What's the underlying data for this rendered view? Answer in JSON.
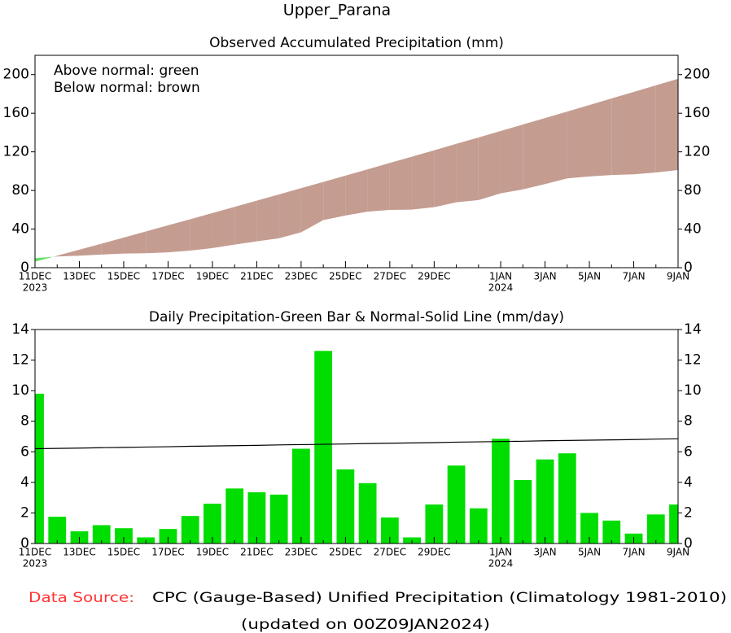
{
  "title": "Upper_Parana",
  "footer": {
    "source_label": "Data Source:",
    "source_text": "CPC (Gauge-Based) Unified Precipitation (Climatology 1981-2010)",
    "updated": "(updated on 00Z09JAN2024)"
  },
  "chart_data": [
    {
      "type": "area",
      "title": "Observed Accumulated Precipitation (mm)",
      "annotations": [
        "Above normal: green",
        "Below normal: brown"
      ],
      "categories": [
        "11DEC",
        null,
        "13DEC",
        null,
        "15DEC",
        null,
        "17DEC",
        null,
        "19DEC",
        null,
        "21DEC",
        null,
        "23DEC",
        null,
        "25DEC",
        null,
        "27DEC",
        null,
        "29DEC",
        null,
        null,
        "1JAN",
        null,
        "3JAN",
        null,
        "5JAN",
        null,
        "7JAN",
        null,
        "9JAN"
      ],
      "x_year_labels": [
        "2023",
        null,
        null,
        null,
        null,
        null,
        null,
        null,
        null,
        null,
        null,
        null,
        null,
        null,
        null,
        null,
        null,
        null,
        null,
        null,
        null,
        "2024",
        null,
        null,
        null,
        null,
        null,
        null,
        null,
        null
      ],
      "ylim": [
        0,
        220
      ],
      "yticks": [
        0,
        40,
        80,
        120,
        160,
        200
      ],
      "above_color": "#66dd66",
      "below_color": "#c49c90",
      "series": [
        {
          "values": [
            9.8,
            11.6,
            12.4,
            13.6,
            14.6,
            15.0,
            15.9,
            17.7,
            20.3,
            23.9,
            27.3,
            30.5,
            36.7,
            49.3,
            54.1,
            58.1,
            59.8,
            60.2,
            62.7,
            67.8,
            70.1,
            77.0,
            81.1,
            86.6,
            92.5,
            94.5,
            96.0,
            96.7,
            98.6,
            101.1
          ]
        },
        {
          "values": [
            6.2,
            12.4,
            18.7,
            24.9,
            31.2,
            37.5,
            43.9,
            50.2,
            56.6,
            63.0,
            69.4,
            75.9,
            82.4,
            88.8,
            95.4,
            101.9,
            108.5,
            115.0,
            121.6,
            128.3,
            134.9,
            141.6,
            148.3,
            155.0,
            161.7,
            168.5,
            175.3,
            182.1,
            188.9,
            195.7
          ]
        }
      ]
    },
    {
      "type": "bar",
      "title": "Daily Precipitation-Green Bar & Normal-Solid Line (mm/day)",
      "categories": [
        "11DEC",
        null,
        "13DEC",
        null,
        "15DEC",
        null,
        "17DEC",
        null,
        "19DEC",
        null,
        "21DEC",
        null,
        "23DEC",
        null,
        "25DEC",
        null,
        "27DEC",
        null,
        "29DEC",
        null,
        null,
        "1JAN",
        null,
        "3JAN",
        null,
        "5JAN",
        null,
        "7JAN",
        null,
        "9JAN"
      ],
      "x_year_labels": [
        "2023",
        null,
        null,
        null,
        null,
        null,
        null,
        null,
        null,
        null,
        null,
        null,
        null,
        null,
        null,
        null,
        null,
        null,
        null,
        null,
        null,
        "2024",
        null,
        null,
        null,
        null,
        null,
        null,
        null,
        null
      ],
      "ylim": [
        0,
        14
      ],
      "yticks": [
        0,
        2,
        4,
        6,
        8,
        10,
        12,
        14
      ],
      "series": [
        {
          "type": "bar",
          "color": "#00dd00",
          "values": [
            9.8,
            1.75,
            0.8,
            1.2,
            1.0,
            0.4,
            0.95,
            1.8,
            2.6,
            3.6,
            3.35,
            3.2,
            6.2,
            12.6,
            4.85,
            3.95,
            1.7,
            0.4,
            2.55,
            5.1,
            2.3,
            6.85,
            4.15,
            5.5,
            5.9,
            2.0,
            1.5,
            0.65,
            1.9,
            2.55
          ]
        },
        {
          "type": "line",
          "color": "#000000",
          "values": [
            6.2,
            6.22,
            6.24,
            6.27,
            6.29,
            6.31,
            6.33,
            6.36,
            6.38,
            6.4,
            6.42,
            6.45,
            6.47,
            6.49,
            6.51,
            6.54,
            6.56,
            6.58,
            6.6,
            6.63,
            6.65,
            6.67,
            6.69,
            6.72,
            6.74,
            6.76,
            6.78,
            6.8,
            6.83,
            6.85
          ]
        }
      ]
    }
  ]
}
